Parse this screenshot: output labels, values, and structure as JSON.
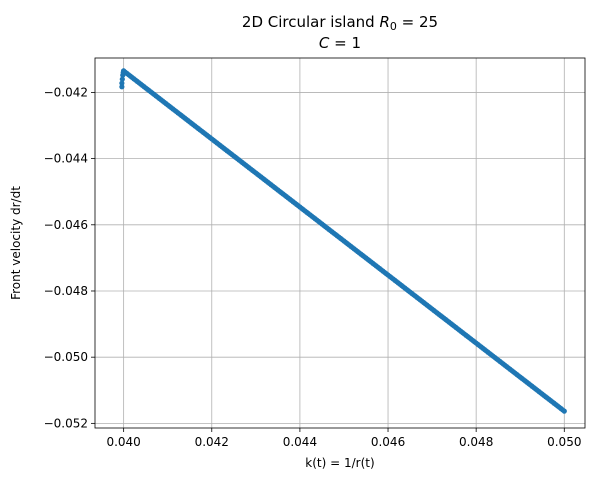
{
  "chart_data": {
    "type": "scatter",
    "title_line1_prefix": "2D Circular island ",
    "title_line1_math_var": "R",
    "title_line1_math_sub": "0",
    "title_line1_math_rest": " = 25",
    "title_line2_math_var": "C",
    "title_line2_math_rest": " = 1",
    "xlabel": "k(t) = 1/r(t)",
    "ylabel": "Front velocity dr/dt",
    "xlim": [
      0.03935,
      0.05047
    ],
    "ylim": [
      -0.05214,
      -0.04096
    ],
    "xticks": [
      0.04,
      0.042,
      0.044,
      0.046,
      0.048,
      0.05
    ],
    "xtick_labels": [
      "0.040",
      "0.042",
      "0.044",
      "0.046",
      "0.048",
      "0.050"
    ],
    "yticks": [
      -0.042,
      -0.044,
      -0.046,
      -0.048,
      -0.05,
      -0.052
    ],
    "ytick_labels": [
      "−0.042",
      "−0.044",
      "−0.046",
      "−0.048",
      "−0.050",
      "−0.052"
    ],
    "grid": true,
    "series": [
      {
        "color": "#1f77b4",
        "segments": [
          {
            "k_start": 0.04,
            "k_end": 0.05,
            "v_start": -0.04135,
            "v_end": -0.05163,
            "kind": "linear"
          }
        ],
        "hook": {
          "x": [
            0.03996,
            0.03996,
            0.03997,
            0.03998,
            0.03999,
            0.04
          ],
          "y": [
            -0.04183,
            -0.04172,
            -0.0416,
            -0.04148,
            -0.0414,
            -0.04135
          ]
        }
      }
    ]
  }
}
